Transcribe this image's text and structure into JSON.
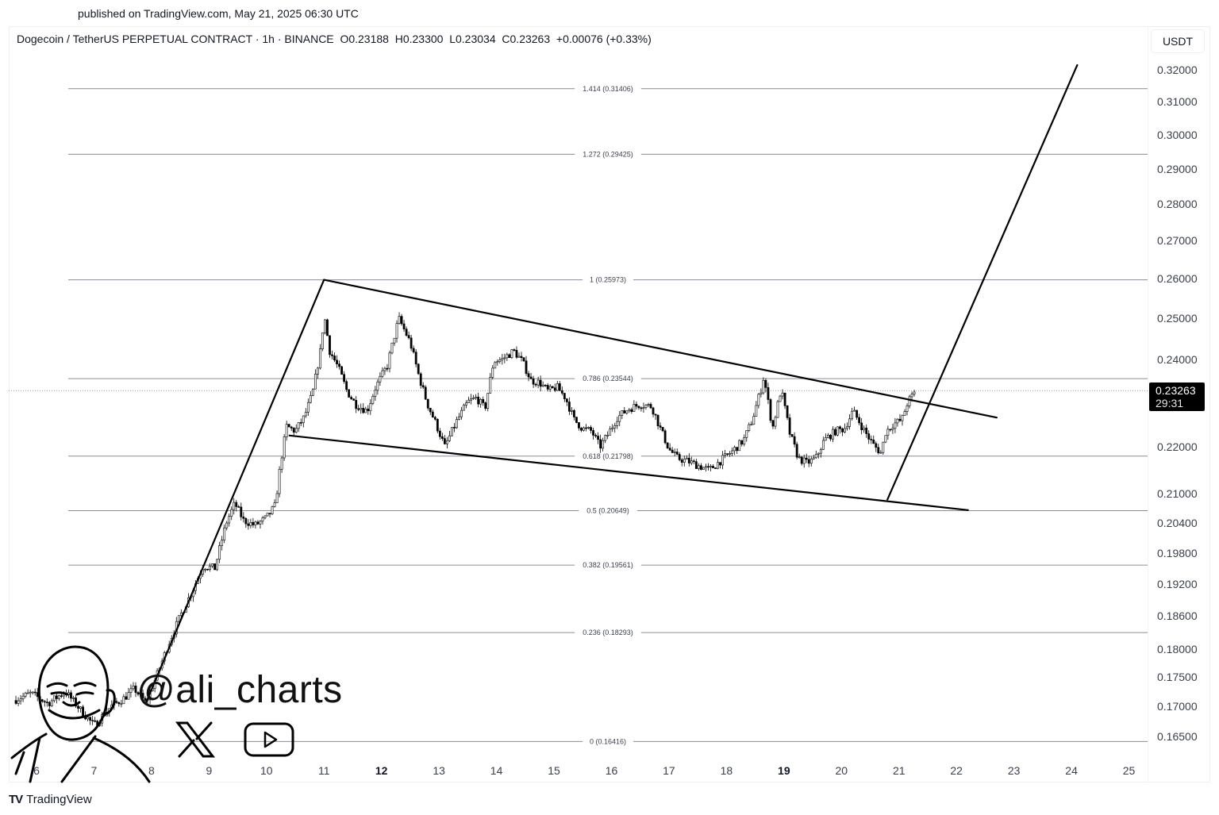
{
  "header": {
    "published": "published on TradingView.com, May 21, 2025 06:30 UTC",
    "symbol": "Dogecoin / TetherUS PERPETUAL CONTRACT · 1h · BINANCE",
    "ohlc": {
      "open": "O0.23188",
      "high": "H0.23300",
      "low": "L0.23034",
      "close": "C0.23263",
      "change": "+0.00076 (+0.33%)"
    },
    "currency_button": "USDT"
  },
  "last_price": {
    "value": "0.23263",
    "countdown": "29:31",
    "bg": "#000000"
  },
  "branding": {
    "handle": "@ali_charts",
    "footer": "TradingView",
    "footer_logo": "TV",
    "icons": [
      "x-logo-icon",
      "youtube-icon",
      "avatar-illustration"
    ]
  },
  "chart_data": {
    "type": "candlestick",
    "title": "Dogecoin / TetherUS PERPETUAL CONTRACT · 1h · BINANCE",
    "xlabel": "",
    "ylabel": "USDT",
    "scale": "log",
    "ylim": [
      0.16,
      0.325
    ],
    "y_ticks": [
      "0.32000",
      "0.31000",
      "0.30000",
      "0.29000",
      "0.28000",
      "0.27000",
      "0.26000",
      "0.25000",
      "0.24000",
      "0.22000",
      "0.21000",
      "0.20400",
      "0.19800",
      "0.19200",
      "0.18600",
      "0.18000",
      "0.17500",
      "0.17000",
      "0.16500"
    ],
    "x_ticks": [
      {
        "label": "6",
        "bold": false
      },
      {
        "label": "7",
        "bold": false
      },
      {
        "label": "8",
        "bold": false
      },
      {
        "label": "9",
        "bold": false
      },
      {
        "label": "10",
        "bold": false
      },
      {
        "label": "11",
        "bold": false
      },
      {
        "label": "12",
        "bold": true
      },
      {
        "label": "13",
        "bold": false
      },
      {
        "label": "14",
        "bold": false
      },
      {
        "label": "15",
        "bold": false
      },
      {
        "label": "16",
        "bold": false
      },
      {
        "label": "17",
        "bold": false
      },
      {
        "label": "18",
        "bold": false
      },
      {
        "label": "19",
        "bold": true
      },
      {
        "label": "20",
        "bold": false
      },
      {
        "label": "21",
        "bold": false
      },
      {
        "label": "22",
        "bold": false
      },
      {
        "label": "23",
        "bold": false
      },
      {
        "label": "24",
        "bold": false
      },
      {
        "label": "25",
        "bold": false
      }
    ],
    "fib_levels": [
      {
        "ratio": "1.414",
        "price": 0.31406,
        "label": "1.414 (0.31406)"
      },
      {
        "ratio": "1.272",
        "price": 0.29425,
        "label": "1.272 (0.29425)"
      },
      {
        "ratio": "1",
        "price": 0.25973,
        "label": "1 (0.25973)"
      },
      {
        "ratio": "0.786",
        "price": 0.23544,
        "label": "0.786 (0.23544)"
      },
      {
        "ratio": "0.618",
        "price": 0.21798,
        "label": "0.618 (0.21798)"
      },
      {
        "ratio": "0.5",
        "price": 0.20649,
        "label": "0.5 (0.20649)"
      },
      {
        "ratio": "0.382",
        "price": 0.19561,
        "label": "0.382 (0.19561)"
      },
      {
        "ratio": "0.236",
        "price": 0.18293,
        "label": "0.236 (0.18293)"
      },
      {
        "ratio": "0",
        "price": 0.16416,
        "label": "0 (0.16416)"
      }
    ],
    "current_price": 0.23263,
    "trendlines": [
      {
        "name": "flagpole",
        "from": {
          "day": 7.9,
          "price": 0.1705
        },
        "to": {
          "day": 11.0,
          "price": 0.25973
        }
      },
      {
        "name": "flag-upper",
        "from": {
          "day": 11.0,
          "price": 0.25973
        },
        "to": {
          "day": 22.7,
          "price": 0.2265
        }
      },
      {
        "name": "flag-lower",
        "from": {
          "day": 10.4,
          "price": 0.2225
        },
        "to": {
          "day": 22.2,
          "price": 0.2066
        }
      },
      {
        "name": "projection",
        "from": {
          "day": 20.8,
          "price": 0.2088
        },
        "to": {
          "day": 24.1,
          "price": 0.3215
        }
      }
    ],
    "price_path": [
      [
        5.6,
        0.171
      ],
      [
        5.9,
        0.1722
      ],
      [
        6.2,
        0.1705
      ],
      [
        6.5,
        0.1725
      ],
      [
        6.8,
        0.169
      ],
      [
        7.0,
        0.1668
      ],
      [
        7.3,
        0.17
      ],
      [
        7.5,
        0.1712
      ],
      [
        7.7,
        0.173
      ],
      [
        7.9,
        0.1706
      ],
      [
        8.1,
        0.1755
      ],
      [
        8.3,
        0.181
      ],
      [
        8.5,
        0.186
      ],
      [
        8.7,
        0.1905
      ],
      [
        8.9,
        0.1955
      ],
      [
        9.1,
        0.195
      ],
      [
        9.3,
        0.204
      ],
      [
        9.45,
        0.208
      ],
      [
        9.6,
        0.2045
      ],
      [
        9.8,
        0.2035
      ],
      [
        10.0,
        0.205
      ],
      [
        10.15,
        0.2075
      ],
      [
        10.25,
        0.217
      ],
      [
        10.35,
        0.2245
      ],
      [
        10.5,
        0.2235
      ],
      [
        10.65,
        0.2265
      ],
      [
        10.8,
        0.232
      ],
      [
        10.95,
        0.243
      ],
      [
        11.0,
        0.251
      ],
      [
        11.1,
        0.242
      ],
      [
        11.25,
        0.238
      ],
      [
        11.4,
        0.2325
      ],
      [
        11.55,
        0.2295
      ],
      [
        11.75,
        0.228
      ],
      [
        11.9,
        0.2335
      ],
      [
        12.1,
        0.2385
      ],
      [
        12.3,
        0.25
      ],
      [
        12.5,
        0.244
      ],
      [
        12.65,
        0.236
      ],
      [
        12.8,
        0.2295
      ],
      [
        12.95,
        0.225
      ],
      [
        13.1,
        0.22
      ],
      [
        13.3,
        0.2255
      ],
      [
        13.5,
        0.23
      ],
      [
        13.65,
        0.231
      ],
      [
        13.8,
        0.2285
      ],
      [
        13.95,
        0.2395
      ],
      [
        14.1,
        0.24
      ],
      [
        14.3,
        0.242
      ],
      [
        14.45,
        0.2395
      ],
      [
        14.6,
        0.235
      ],
      [
        14.75,
        0.2345
      ],
      [
        14.9,
        0.2325
      ],
      [
        15.05,
        0.2335
      ],
      [
        15.2,
        0.231
      ],
      [
        15.35,
        0.226
      ],
      [
        15.5,
        0.224
      ],
      [
        15.65,
        0.2235
      ],
      [
        15.8,
        0.22
      ],
      [
        15.95,
        0.223
      ],
      [
        16.1,
        0.2265
      ],
      [
        16.3,
        0.2285
      ],
      [
        16.5,
        0.2295
      ],
      [
        16.7,
        0.229
      ],
      [
        16.85,
        0.224
      ],
      [
        17.0,
        0.2195
      ],
      [
        17.15,
        0.2175
      ],
      [
        17.3,
        0.217
      ],
      [
        17.5,
        0.216
      ],
      [
        17.7,
        0.215
      ],
      [
        17.9,
        0.217
      ],
      [
        18.1,
        0.219
      ],
      [
        18.3,
        0.2215
      ],
      [
        18.45,
        0.226
      ],
      [
        18.6,
        0.233
      ],
      [
        18.65,
        0.236
      ],
      [
        18.8,
        0.224
      ],
      [
        18.95,
        0.233
      ],
      [
        19.1,
        0.223
      ],
      [
        19.25,
        0.2175
      ],
      [
        19.4,
        0.2165
      ],
      [
        19.55,
        0.2175
      ],
      [
        19.7,
        0.2215
      ],
      [
        19.9,
        0.2235
      ],
      [
        20.05,
        0.224
      ],
      [
        20.2,
        0.228
      ],
      [
        20.4,
        0.2235
      ],
      [
        20.55,
        0.2205
      ],
      [
        20.7,
        0.2185
      ],
      [
        20.75,
        0.223
      ],
      [
        20.9,
        0.225
      ],
      [
        21.05,
        0.226
      ],
      [
        21.15,
        0.23
      ],
      [
        21.3,
        0.2326
      ]
    ]
  }
}
